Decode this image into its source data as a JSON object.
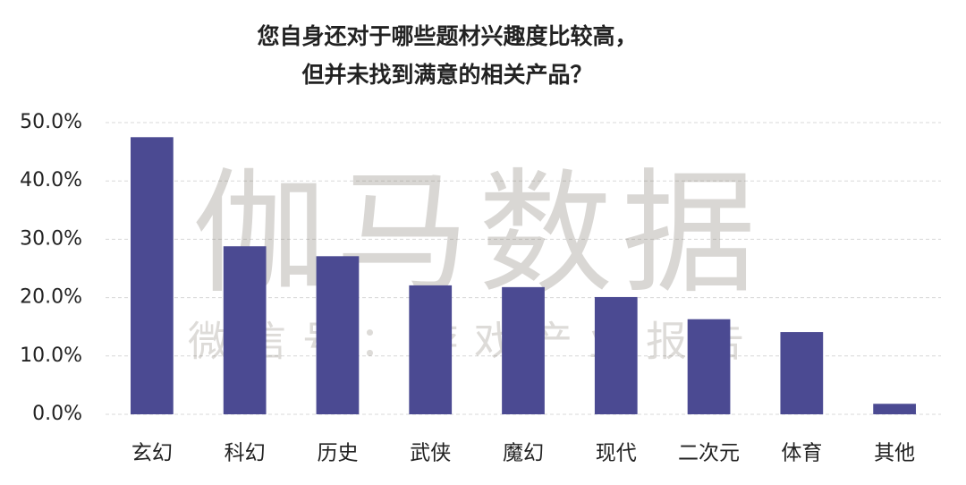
{
  "chart_data": {
    "type": "bar",
    "title_lines": [
      "您自身还对于哪些题材兴趣度比较高，",
      "但并未找到满意的相关产品？"
    ],
    "watermark": "伽马数据",
    "watermark_sub": "微信号：游戏产业报告",
    "categories": [
      "玄幻",
      "科幻",
      "历史",
      "武侠",
      "魔幻",
      "现代",
      "二次元",
      "体育",
      "其他"
    ],
    "values": [
      47.5,
      28.8,
      27.1,
      22.1,
      21.8,
      20.1,
      16.3,
      14.1,
      1.8
    ],
    "color": "#4b4a92",
    "ylim": [
      0,
      50
    ],
    "yticks": [
      {
        "value": 0,
        "label": "0.0%"
      },
      {
        "value": 10,
        "label": "10.0%"
      },
      {
        "value": 20,
        "label": "20.0%"
      },
      {
        "value": 30,
        "label": "30.0%"
      },
      {
        "value": 40,
        "label": "40.0%"
      },
      {
        "value": 50,
        "label": "50.0%"
      }
    ],
    "grid": true
  }
}
